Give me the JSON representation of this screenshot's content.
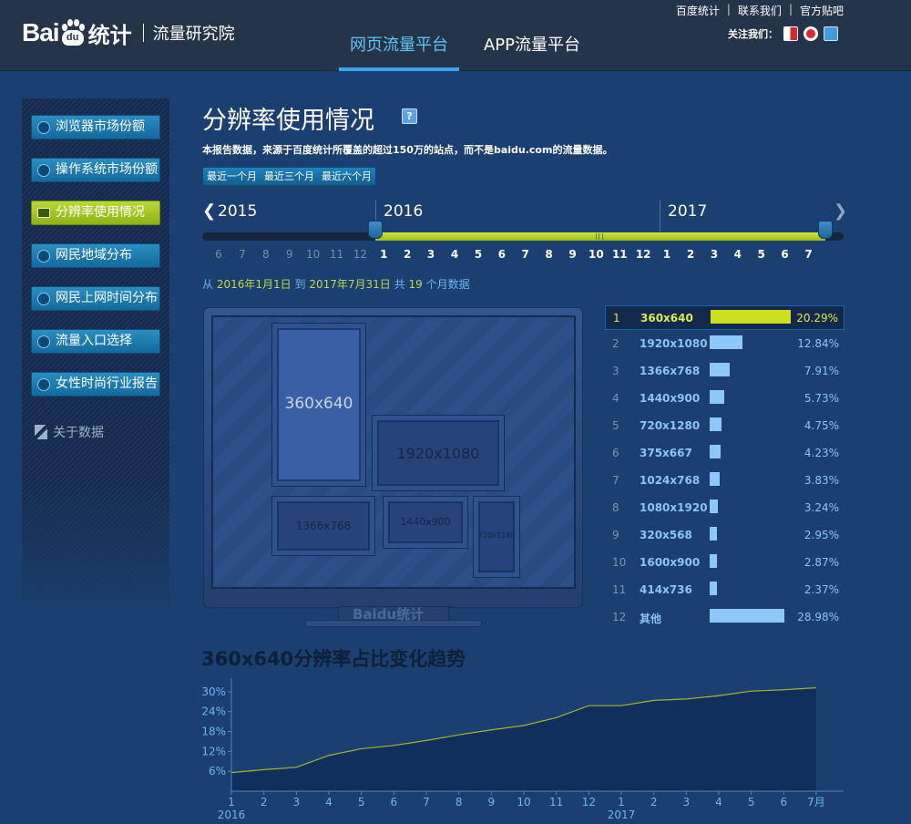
{
  "header": {
    "logo": {
      "bai": "Bai",
      "du": "du",
      "tongji": "统计",
      "institute": "流量研究院"
    },
    "nav_tabs": [
      {
        "label": "网页流量平台",
        "active": true
      },
      {
        "label": "APP流量平台",
        "active": false
      }
    ],
    "top_links": [
      "百度统计",
      "联系我们",
      "官方贴吧"
    ],
    "follow_label": "关注我们：",
    "follow_icons": [
      "tencent-weibo-icon",
      "sina-weibo-icon",
      "baidu-hi-icon"
    ]
  },
  "sidebar": {
    "items": [
      {
        "label": "浏览器市场份额",
        "icon": "ie-icon"
      },
      {
        "label": "操作系统市场份额",
        "icon": "windows-icon"
      },
      {
        "label": "分辨率使用情况",
        "icon": "monitor-icon",
        "active": true
      },
      {
        "label": "网民地域分布",
        "icon": "globe-icon"
      },
      {
        "label": "网民上网时间分布",
        "icon": "clock-icon"
      },
      {
        "label": "流量入口选择",
        "icon": "search-icon"
      },
      {
        "label": "女性时尚行业报告",
        "icon": "chart-icon"
      }
    ],
    "about_label": "关于数据"
  },
  "main": {
    "title": "分辨率使用情况",
    "help": "?",
    "desc": "本报告数据，来源于百度统计所覆盖的超过150万的站点，而不是baidu.com的流量数据。",
    "range_buttons": [
      "最近一个月",
      "最近三个月",
      "最近六个月"
    ],
    "timeline": {
      "years": [
        "2015",
        "2016",
        "2017"
      ],
      "months_2015": [
        "6",
        "7",
        "8",
        "9",
        "10",
        "11",
        "12"
      ],
      "months_2016": [
        "1",
        "2",
        "3",
        "4",
        "5",
        "6",
        "7",
        "8",
        "9",
        "10",
        "11",
        "12"
      ],
      "months_2017": [
        "1",
        "2",
        "3",
        "4",
        "5",
        "6",
        "7"
      ]
    },
    "period": {
      "from_label": "从",
      "start": "2016年1月1日",
      "to_label": "到",
      "end": "2017年7月31日",
      "total_label": "共",
      "count": "19",
      "unit_label": "个月数据"
    },
    "monitor": {
      "logo": "Baidu统计",
      "boxes": [
        "360x640",
        "1920x1080",
        "1366x768",
        "1440x900",
        "720x1280"
      ]
    },
    "ranking": [
      {
        "rank": "1",
        "name": "360x640",
        "percent": "20.29%",
        "value": 20.29
      },
      {
        "rank": "2",
        "name": "1920x1080",
        "percent": "12.84%",
        "value": 12.84
      },
      {
        "rank": "3",
        "name": "1366x768",
        "percent": "7.91%",
        "value": 7.91
      },
      {
        "rank": "4",
        "name": "1440x900",
        "percent": "5.73%",
        "value": 5.73
      },
      {
        "rank": "5",
        "name": "720x1280",
        "percent": "4.75%",
        "value": 4.75
      },
      {
        "rank": "6",
        "name": "375x667",
        "percent": "4.23%",
        "value": 4.23
      },
      {
        "rank": "7",
        "name": "1024x768",
        "percent": "3.83%",
        "value": 3.83
      },
      {
        "rank": "8",
        "name": "1080x1920",
        "percent": "3.24%",
        "value": 3.24
      },
      {
        "rank": "9",
        "name": "320x568",
        "percent": "2.95%",
        "value": 2.95
      },
      {
        "rank": "10",
        "name": "1600x900",
        "percent": "2.87%",
        "value": 2.87
      },
      {
        "rank": "11",
        "name": "414x736",
        "percent": "2.37%",
        "value": 2.37
      },
      {
        "rank": "12",
        "name": "其他",
        "percent": "28.98%",
        "value": 28.98
      }
    ]
  },
  "chart_data": {
    "type": "area",
    "title": "360x640分辨率占比变化趋势",
    "x": [
      "1",
      "2",
      "3",
      "4",
      "5",
      "6",
      "7",
      "8",
      "9",
      "10",
      "11",
      "12",
      "1",
      "2",
      "3",
      "4",
      "5",
      "6",
      "7月"
    ],
    "x_year_labels": [
      {
        "index": 0,
        "label": "2016"
      },
      {
        "index": 12,
        "label": "2017"
      }
    ],
    "yticks": [
      "6%",
      "12%",
      "18%",
      "24%",
      "30%"
    ],
    "ylim": [
      0,
      33
    ],
    "grid": false,
    "series": [
      {
        "values": [
          5.6,
          6.5,
          7.2,
          10.8,
          12.8,
          13.8,
          15.3,
          17.0,
          18.5,
          19.8,
          22.2,
          25.8,
          25.8,
          27.4,
          27.8,
          28.8,
          30.2,
          30.6,
          31.2
        ]
      }
    ],
    "colors": {
      "line": "#a5b52e",
      "fill": "#112f5c",
      "axis": "#4f86c0",
      "labels": "#6fb6ef"
    }
  }
}
